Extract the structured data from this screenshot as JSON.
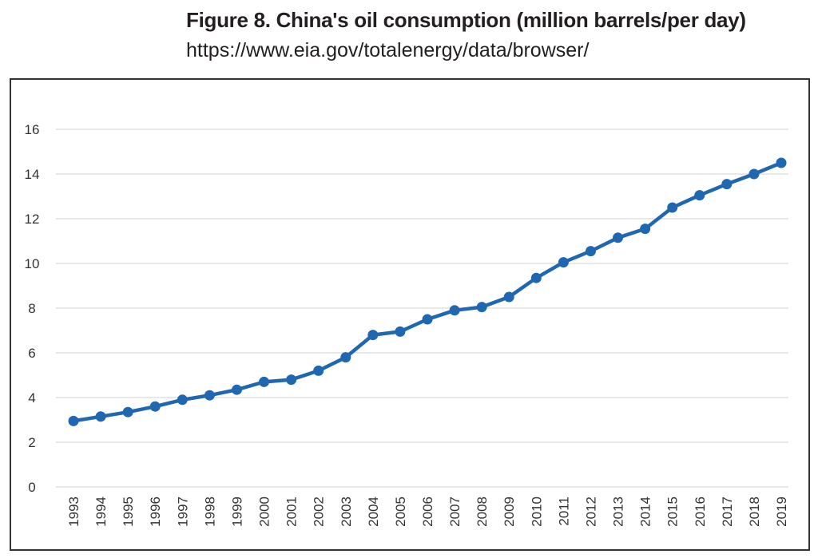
{
  "figure": {
    "title": "Figure 8. China's oil consumption (million barrels/per day)",
    "source": "https://www.eia.gov/totalenergy/data/browser/"
  },
  "colors": {
    "line": "#1f67b1",
    "grid": "#d9d9d9",
    "frame": "#333333"
  },
  "chart_data": {
    "type": "line",
    "title": "Figure 8. China's oil consumption (million barrels/per day)",
    "xlabel": "",
    "ylabel": "",
    "categories": [
      "1993",
      "1994",
      "1995",
      "1996",
      "1997",
      "1998",
      "1999",
      "2000",
      "2001",
      "2002",
      "2003",
      "2004",
      "2005",
      "2006",
      "2007",
      "2008",
      "2009",
      "2010",
      "2011",
      "2012",
      "2013",
      "2014",
      "2015",
      "2016",
      "2017",
      "2018",
      "2019"
    ],
    "series": [
      {
        "name": "China's oil consumption",
        "values": [
          2.95,
          3.15,
          3.35,
          3.6,
          3.9,
          4.1,
          4.35,
          4.7,
          4.8,
          5.2,
          5.8,
          6.8,
          6.95,
          7.5,
          7.9,
          8.05,
          8.5,
          9.35,
          10.05,
          10.55,
          11.15,
          11.55,
          12.5,
          13.05,
          13.55,
          14.0,
          14.5
        ]
      }
    ],
    "ylim": [
      0,
      16
    ],
    "yticks": [
      0,
      2,
      4,
      6,
      8,
      10,
      12,
      14,
      16
    ],
    "grid": true,
    "legend": "none"
  }
}
